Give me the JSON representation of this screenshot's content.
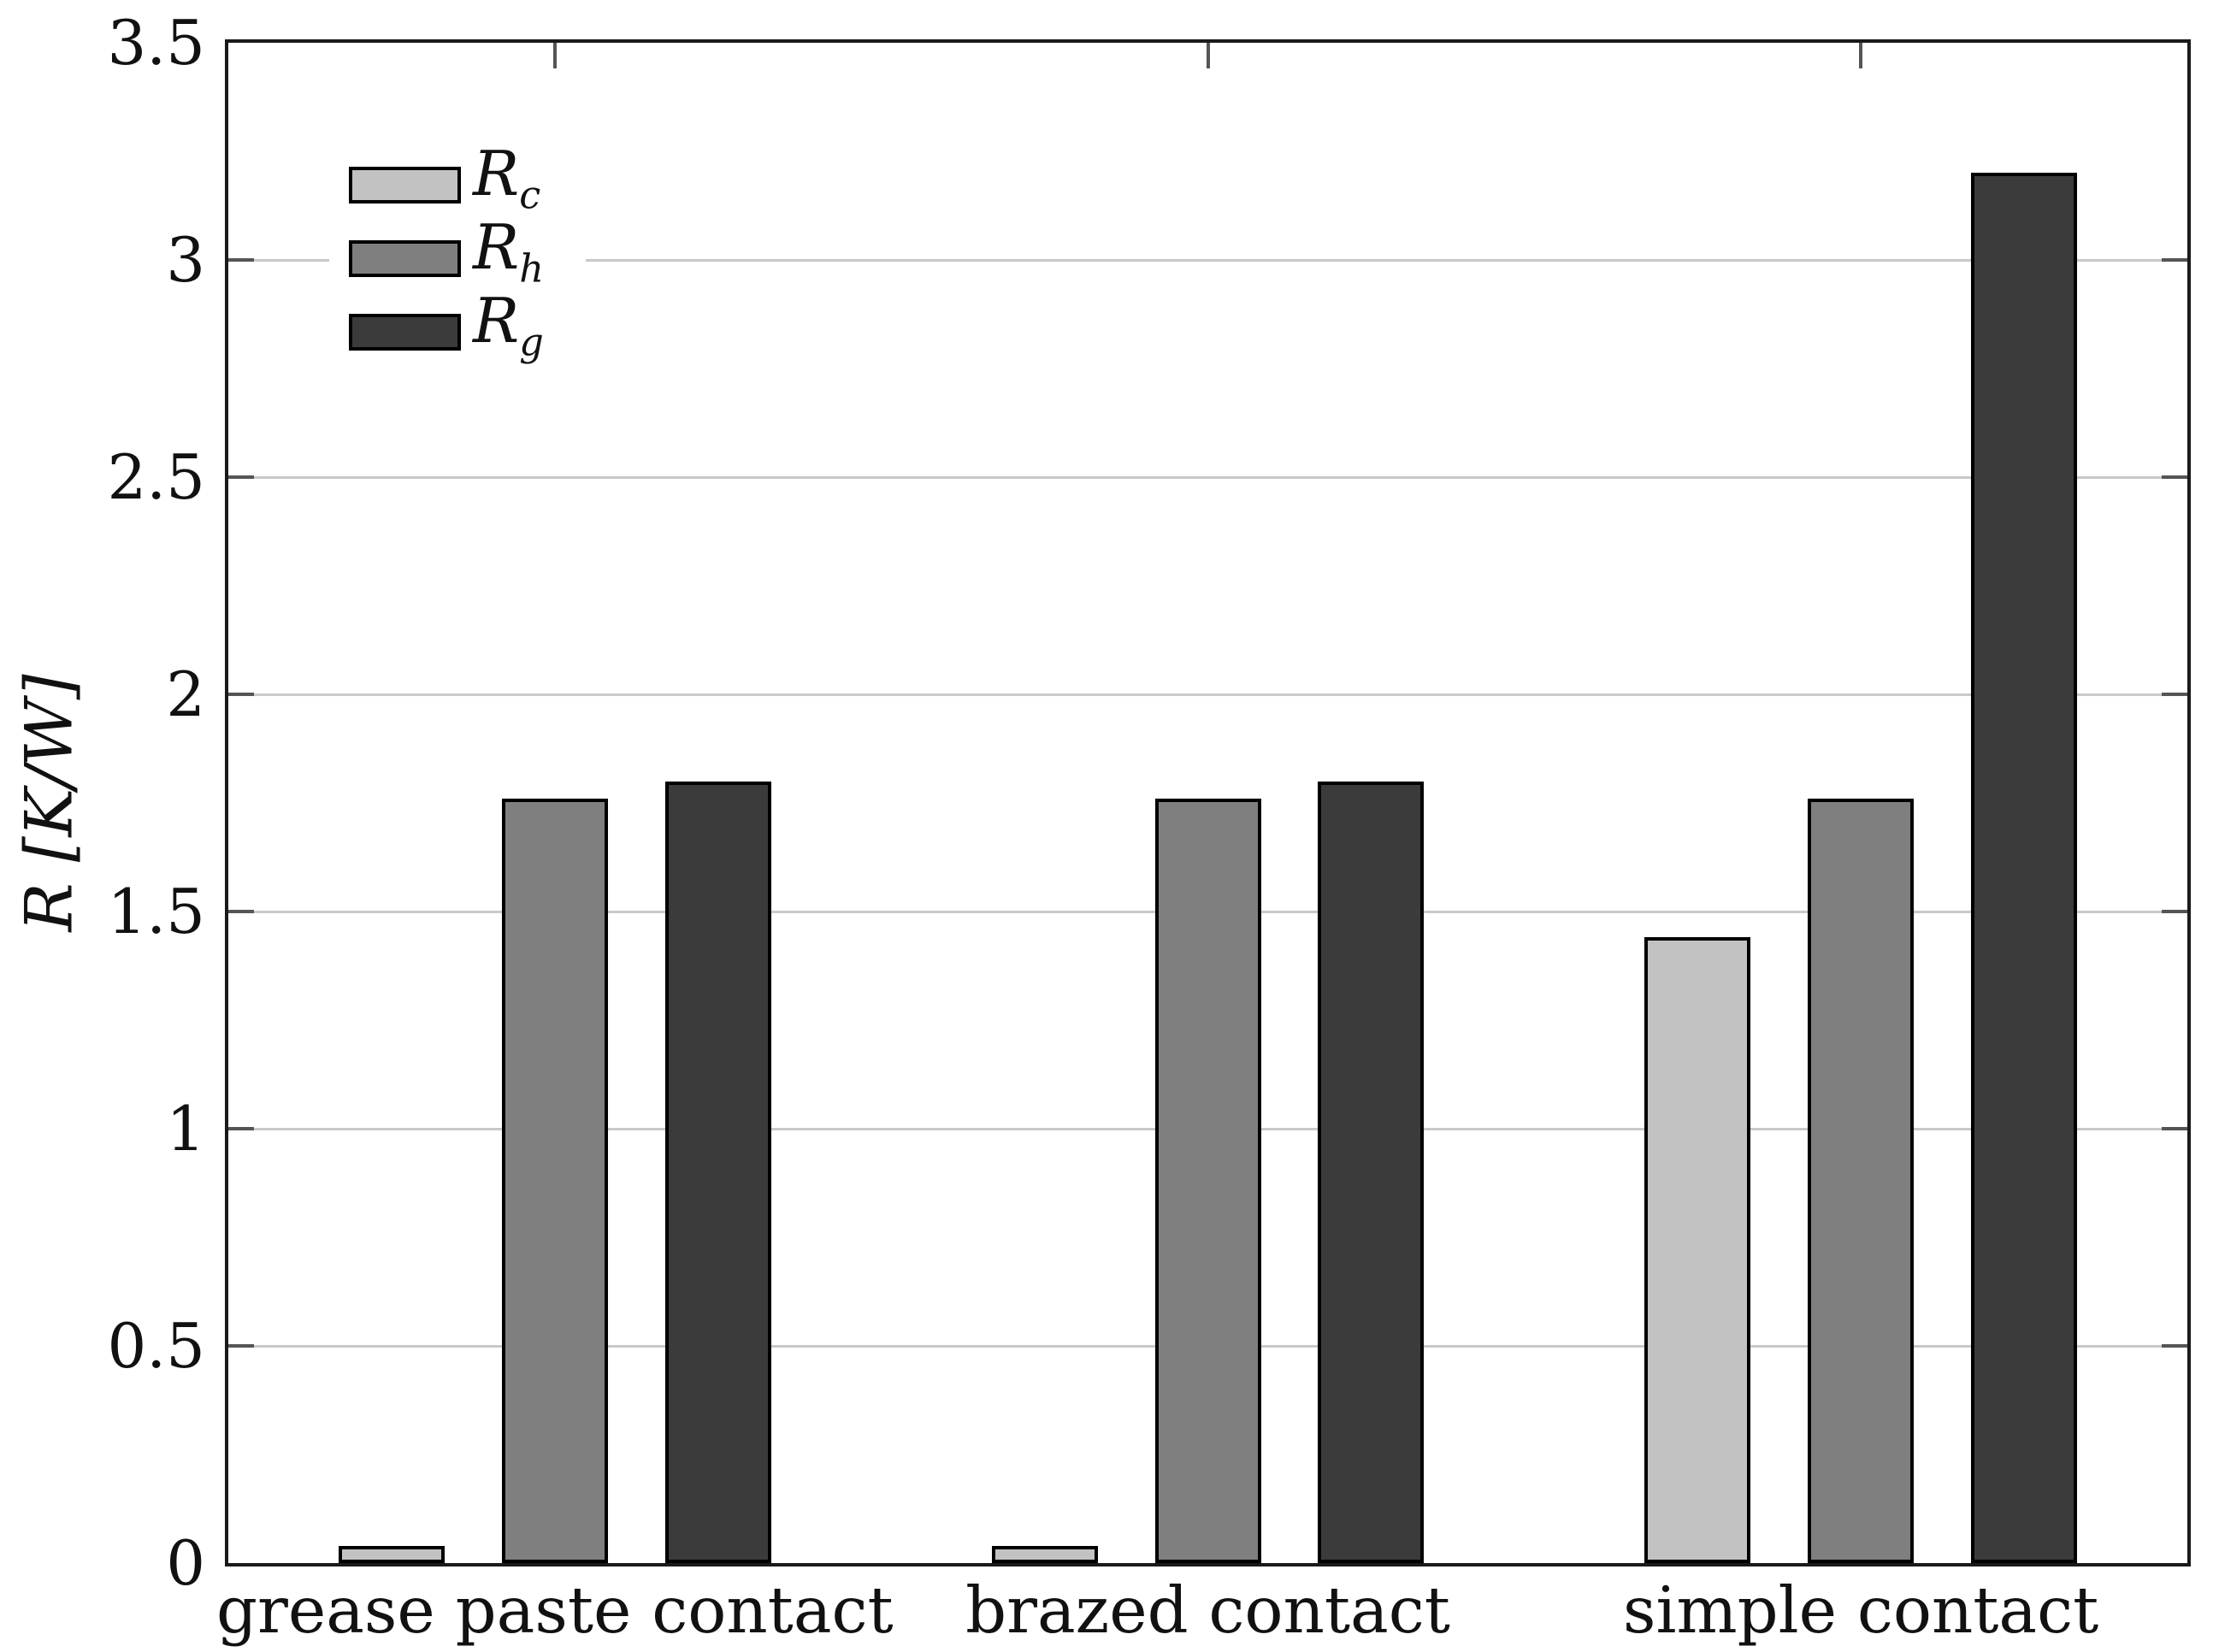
{
  "figure": {
    "background": "#ffffff",
    "text_color": "#111111"
  },
  "chart_data": {
    "type": "bar",
    "title": "",
    "xlabel": "",
    "ylabel": "R [K/W]",
    "categories": [
      "grease paste contact",
      "brazed contact",
      "simple contact"
    ],
    "series": [
      {
        "name": "R_c",
        "label_main": "R",
        "label_sub": "c",
        "color": "#c2c2c2",
        "values": [
          0.04,
          0.04,
          1.44
        ]
      },
      {
        "name": "R_h",
        "label_main": "R",
        "label_sub": "h",
        "color": "#7f7f7f",
        "values": [
          1.76,
          1.76,
          1.76
        ]
      },
      {
        "name": "R_g",
        "label_main": "R",
        "label_sub": "g",
        "color": "#3b3b3b",
        "values": [
          1.8,
          1.8,
          3.2
        ]
      }
    ],
    "ylim": [
      0,
      3.5
    ],
    "ytick_step": 0.5,
    "ytick_labels": [
      "0",
      "0.5",
      "1",
      "1.5",
      "2",
      "2.5",
      "3",
      "3.5"
    ],
    "grid": true,
    "legend_position": "top-left",
    "style_colors": {
      "frame": "#1a1a1a",
      "grid": "#c9c9c9",
      "tick": "#555555",
      "bar_border": "#000000"
    }
  }
}
